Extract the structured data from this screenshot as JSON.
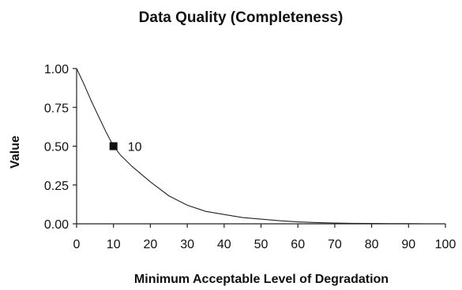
{
  "chart_data": {
    "type": "line",
    "title": "Data Quality (Completeness)",
    "xlabel": "Minimum Acceptable Level of Degradation",
    "ylabel": "Value",
    "xlim": [
      0,
      100
    ],
    "ylim": [
      0,
      1
    ],
    "x_ticks": [
      "0",
      "10",
      "20",
      "30",
      "40",
      "50",
      "60",
      "70",
      "80",
      "90",
      "100"
    ],
    "y_ticks": [
      "0.00",
      "0.25",
      "0.50",
      "0.75",
      "1.00"
    ],
    "grid": false,
    "legend": "none",
    "series": [
      {
        "x": [
          0,
          2,
          4,
          6,
          8,
          10,
          12,
          15,
          20,
          25,
          30,
          35,
          40,
          45,
          50,
          55,
          60,
          65,
          70,
          75,
          80,
          85,
          90,
          95,
          100
        ],
        "y": [
          1.0,
          0.9,
          0.79,
          0.69,
          0.59,
          0.5,
          0.44,
          0.37,
          0.27,
          0.18,
          0.12,
          0.08,
          0.06,
          0.04,
          0.03,
          0.02,
          0.012,
          0.008,
          0.005,
          0.003,
          0.002,
          0.001,
          0.001,
          0.0,
          0.0
        ],
        "color": "#222222"
      }
    ],
    "highlight": {
      "x": 10,
      "y": 0.5,
      "label": "10",
      "marker": "square",
      "color": "#111111"
    }
  }
}
